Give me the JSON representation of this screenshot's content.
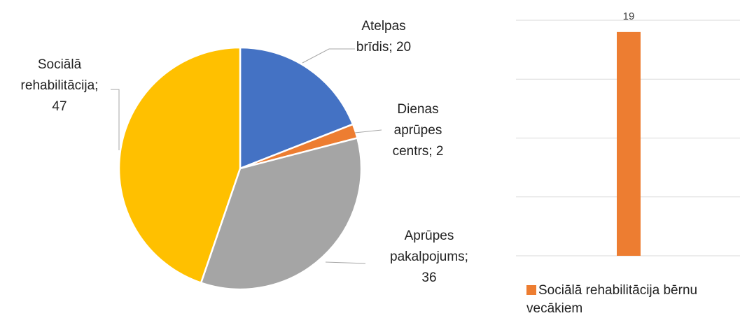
{
  "chart_data": [
    {
      "type": "pie",
      "labels": [
        [
          "Atelpas",
          "brīdis; 20"
        ],
        [
          "Dienas",
          "aprūpes",
          "centrs; 2"
        ],
        [
          "Aprūpes",
          "pakalpojums;",
          "36"
        ],
        [
          "Sociālā",
          "rehabilitācija;",
          "47"
        ]
      ],
      "values": [
        20,
        2,
        36,
        47
      ],
      "colors": [
        "#4472c4",
        "#ed7d31",
        "#a5a5a5",
        "#ffc000"
      ]
    },
    {
      "type": "bar",
      "series": [
        {
          "name": "Sociālā rehabilitācija bērnu vecākiem",
          "color": "#ed7d31",
          "values": [
            19
          ]
        }
      ],
      "ylim": [
        0,
        20
      ],
      "yticks": [
        0,
        5,
        10,
        15,
        20
      ],
      "grid": true
    }
  ]
}
